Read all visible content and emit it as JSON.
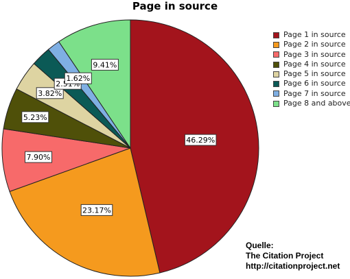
{
  "chart_data": {
    "type": "pie",
    "title": "Page in source",
    "start_angle_deg": 0,
    "direction": "clockwise",
    "slices": [
      {
        "label": "Page 1 in source",
        "value": 46.29,
        "display": "46.29%",
        "color": "#a3141c"
      },
      {
        "label": "Page 2 in source",
        "value": 23.17,
        "display": "23.17%",
        "color": "#f59a1e"
      },
      {
        "label": "Page 3 in source",
        "value": 7.9,
        "display": "7.90%",
        "color": "#f76a6a"
      },
      {
        "label": "Page 4 in source",
        "value": 5.23,
        "display": "5.23%",
        "color": "#4f5009"
      },
      {
        "label": "Page 5 in source",
        "value": 3.82,
        "display": "3.82%",
        "color": "#ded4a2"
      },
      {
        "label": "Page 6 in source",
        "value": 2.51,
        "display": "2.51%",
        "color": "#0b5a56"
      },
      {
        "label": "Page 7 in source",
        "value": 1.62,
        "display": "1.62%",
        "color": "#7fafe3"
      },
      {
        "label": "Page 8 and above",
        "value": 9.41,
        "display": "9.41%",
        "color": "#7ce08a"
      }
    ],
    "legend_position": "right"
  },
  "source_note": {
    "heading": "Quelle:",
    "org": "The Citation Project",
    "url": "http://citationproject.net"
  }
}
